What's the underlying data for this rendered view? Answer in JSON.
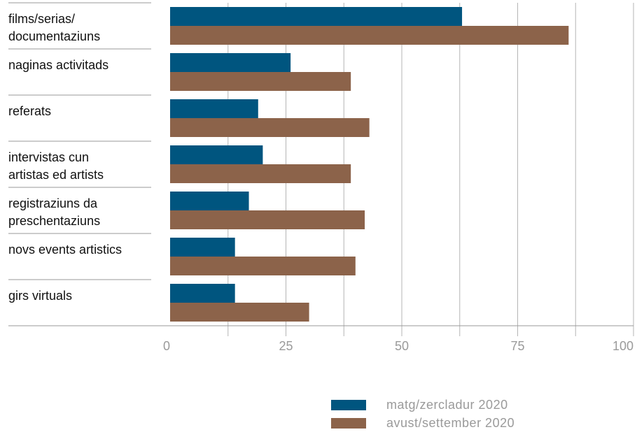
{
  "chart_data": {
    "type": "bar",
    "orientation": "horizontal",
    "categories": [
      [
        "films/serias/",
        "documentaziuns"
      ],
      [
        "naginas activitads"
      ],
      [
        "referats"
      ],
      [
        "intervistas cun",
        "artistas ed artists"
      ],
      [
        "registraziuns da",
        "preschentaziuns"
      ],
      [
        "novs events artistics"
      ],
      [
        "girs virtuals"
      ]
    ],
    "series": [
      {
        "name": "matg/zercladur 2020",
        "color": "#00557f",
        "values": [
          63,
          26,
          19,
          20,
          17,
          14,
          14
        ]
      },
      {
        "name": "avust/settember 2020",
        "color": "#8c634a",
        "values": [
          86,
          39,
          43,
          39,
          42,
          40,
          30
        ]
      }
    ],
    "xlim": [
      0,
      100
    ],
    "xticks": [
      0,
      25,
      50,
      75,
      100
    ],
    "gridlines": [
      0,
      12.5,
      25,
      37.5,
      50,
      62.5,
      75,
      87.5,
      100
    ],
    "grid": true,
    "legend_position": "bottom-right"
  }
}
